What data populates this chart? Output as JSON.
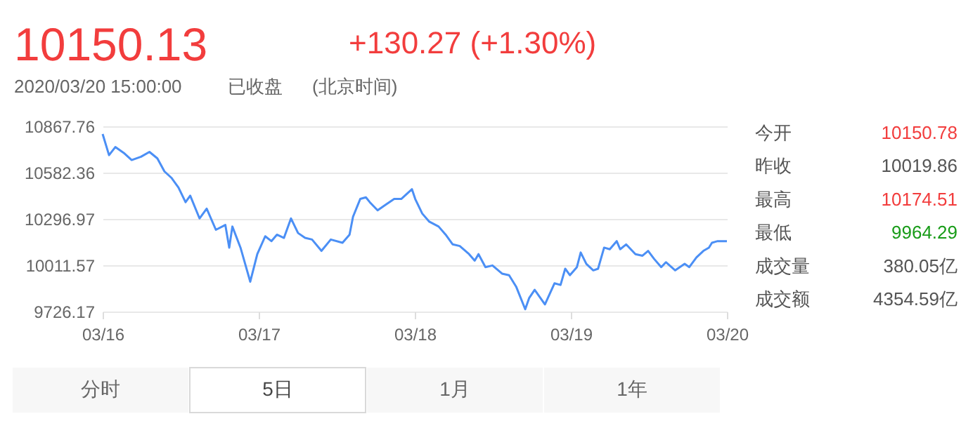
{
  "chart_data": {
    "type": "line",
    "title": "10150.13",
    "annotations": [
      "+130.27 (+1.30%)",
      "2020/03/20 15:00:00",
      "已收盘",
      "(北京时间)",
      "今开",
      "10150.78",
      "昨收",
      "10019.86",
      "最高",
      "10174.51",
      "最低",
      "9964.29",
      "成交量",
      "380.05亿",
      "成交额",
      "4354.59亿",
      "分时",
      "5日",
      "1月",
      "1年"
    ],
    "x": [
      "2020-03-16T00:00",
      "2020-03-16T00:59",
      "2020-03-16T01:57",
      "2020-03-16T03:22",
      "2020-03-16T04:28",
      "2020-03-16T05:54",
      "2020-03-16T07:12",
      "2020-03-16T08:25",
      "2020-03-16T09:30",
      "2020-03-16T10:35",
      "2020-03-16T11:40",
      "2020-03-16T12:45",
      "2020-03-16T13:28",
      "2020-03-16T14:54",
      "2020-03-16T16:00",
      "2020-03-16T17:25",
      "2020-03-16T18:52",
      "2020-03-16T19:28",
      "2020-03-16T19:57",
      "2020-03-16T21:12",
      "2020-03-16T21:55",
      "2020-03-16T22:42",
      "2020-03-16T23:47",
      "2020-03-17T01:00",
      "2020-03-17T01:57",
      "2020-03-17T02:48",
      "2020-03-17T03:53",
      "2020-03-17T04:58",
      "2020-03-17T06:03",
      "2020-03-17T07:08",
      "2020-03-17T08:12",
      "2020-03-17T09:39",
      "2020-03-17T11:05",
      "2020-03-17T12:53",
      "2020-03-17T13:58",
      "2020-03-17T14:30",
      "2020-03-17T15:37",
      "2020-03-17T16:29",
      "2020-03-17T17:05",
      "2020-03-17T18:17",
      "2020-03-17T19:22",
      "2020-03-17T20:50",
      "2020-03-17T21:55",
      "2020-03-17T23:34",
      "2020-03-18T00:04",
      "2020-03-18T01:09",
      "2020-03-18T02:14",
      "2020-03-18T03:40",
      "2020-03-18T04:45",
      "2020-03-18T05:50",
      "2020-03-18T06:55",
      "2020-03-18T08:21",
      "2020-03-18T09:13",
      "2020-03-18T09:48",
      "2020-03-18T10:52",
      "2020-03-18T11:57",
      "2020-03-18T13:25",
      "2020-03-18T14:30",
      "2020-03-18T15:35",
      "2020-03-18T16:59",
      "2020-03-18T17:36",
      "2020-03-18T18:26",
      "2020-03-18T20:01",
      "2020-03-18T21:29",
      "2020-03-18T22:25",
      "2020-03-18T23:08",
      "2020-03-18T23:51",
      "2020-03-19T00:56",
      "2020-03-19T01:31",
      "2020-03-19T02:23",
      "2020-03-19T03:27",
      "2020-03-19T04:11",
      "2020-03-19T05:07",
      "2020-03-19T05:59",
      "2020-03-19T07:03",
      "2020-03-19T07:35",
      "2020-03-19T08:30",
      "2020-03-19T09:56",
      "2020-03-19T11:01",
      "2020-03-19T11:53",
      "2020-03-19T12:49",
      "2020-03-19T13:54",
      "2020-03-19T14:37",
      "2020-03-19T16:03",
      "2020-03-19T17:30",
      "2020-03-19T18:13",
      "2020-03-19T19:19",
      "2020-03-19T20:23",
      "2020-03-19T21:14",
      "2020-03-19T21:42",
      "2020-03-19T22:35",
      "2020-03-20T00:00"
    ],
    "series": [
      {
        "color": "#4b8ff5",
        "values": [
          10820,
          10690,
          10740,
          10700,
          10660,
          10680,
          10710,
          10670,
          10590,
          10550,
          10490,
          10400,
          10440,
          10300,
          10360,
          10230,
          10260,
          10120,
          10250,
          10120,
          10020,
          9910,
          10080,
          10190,
          10160,
          10200,
          10180,
          10300,
          10210,
          10180,
          10170,
          10100,
          10170,
          10150,
          10200,
          10310,
          10420,
          10430,
          10400,
          10350,
          10380,
          10420,
          10420,
          10480,
          10420,
          10330,
          10280,
          10250,
          10200,
          10140,
          10130,
          10080,
          10040,
          10080,
          10000,
          10010,
          9960,
          9950,
          9880,
          9740,
          9810,
          9860,
          9770,
          9900,
          9890,
          9990,
          9950,
          10000,
          10090,
          10020,
          9980,
          9990,
          10120,
          10110,
          10160,
          10110,
          10140,
          10080,
          10070,
          10100,
          10050,
          10000,
          10030,
          9980,
          10020,
          10000,
          10060,
          10100,
          10120,
          10150,
          10160,
          10160
        ]
      }
    ],
    "xlim": [
      "2020-03-16",
      "2020-03-20"
    ],
    "xticks": [
      {
        "value": "2020-03-16",
        "label": "03/16"
      },
      {
        "value": "2020-03-17",
        "label": "03/17"
      },
      {
        "value": "2020-03-18",
        "label": "03/18"
      },
      {
        "value": "2020-03-19",
        "label": "03/19"
      },
      {
        "value": "2020-03-20",
        "label": "03/20"
      }
    ],
    "ylim": [
      9726.17,
      10867.76
    ],
    "yticks": [
      9726.17,
      10011.57,
      10296.97,
      10582.36,
      10867.76
    ],
    "grid": "y",
    "marker": "none",
    "line_style": "solid"
  }
}
